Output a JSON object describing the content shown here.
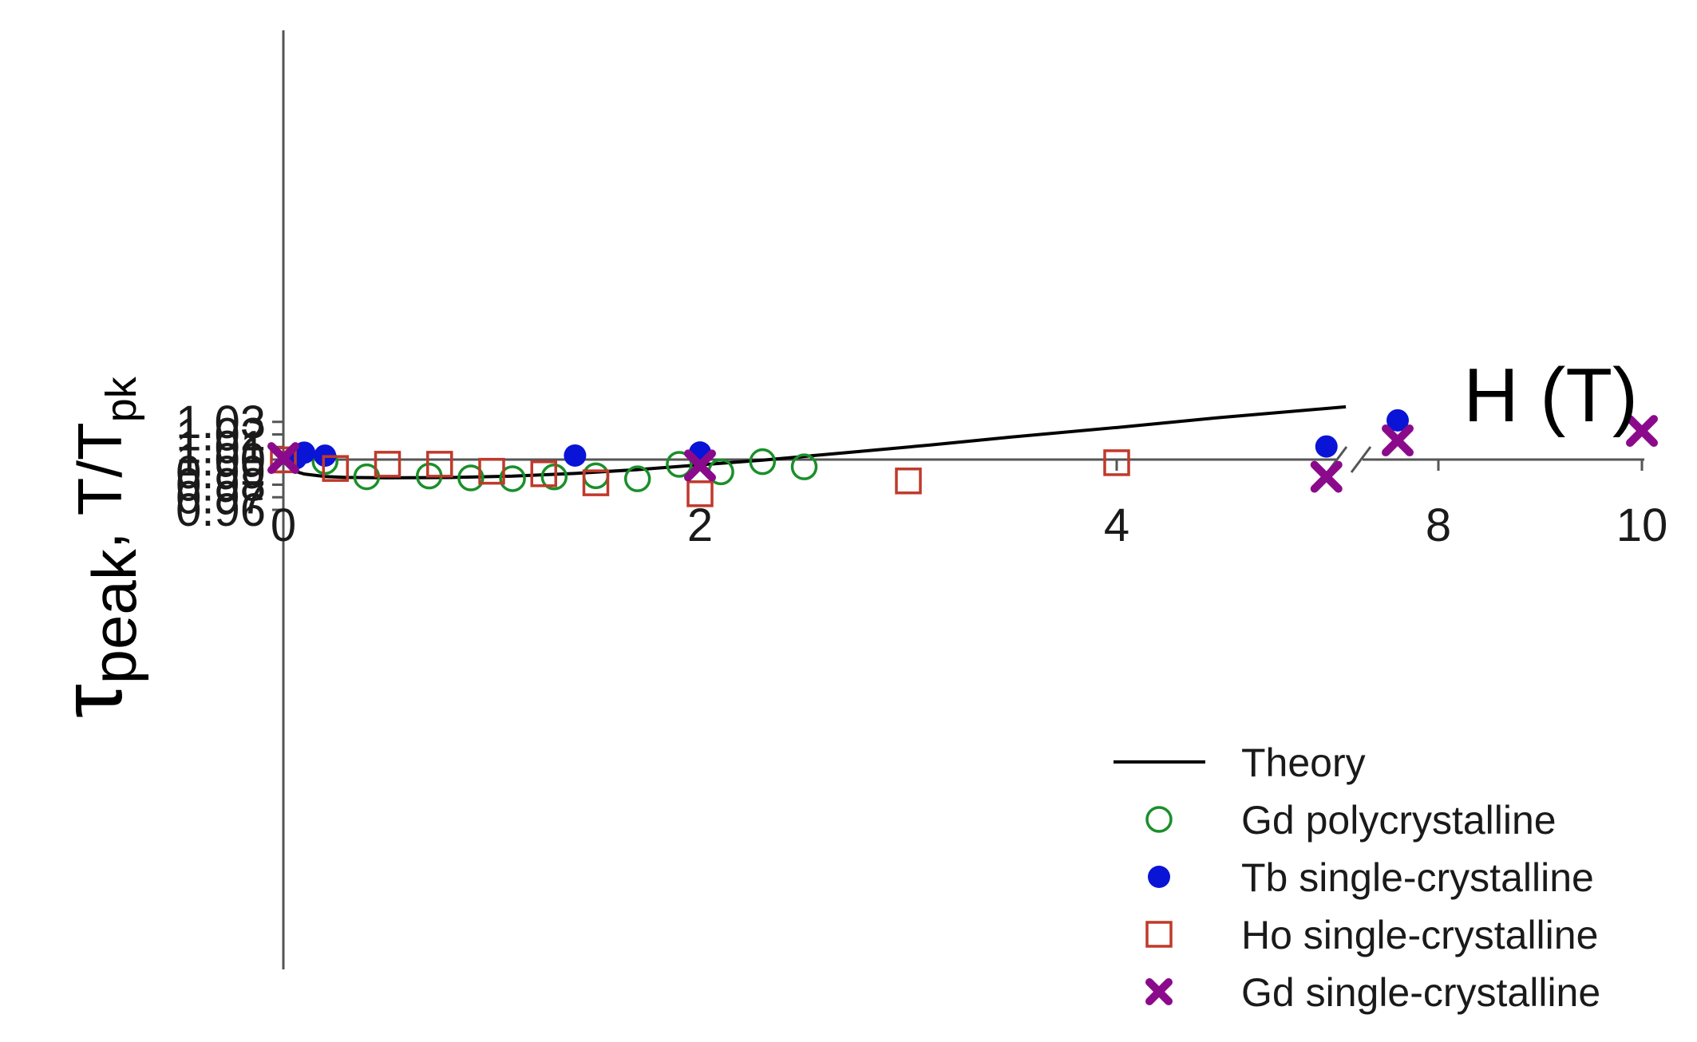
{
  "chart_data": {
    "type": "scatter",
    "xlabel": "H (T)",
    "ylabel": {
      "tau": "τ",
      "sub": "peak",
      "mid": ", T/T",
      "sub2": "pk"
    },
    "ylim": [
      0.96,
      1.03
    ],
    "x_tick_labels": [
      "0",
      "2",
      "4",
      "8",
      "10"
    ],
    "x_tick_values": [
      0,
      2,
      4,
      8,
      10
    ],
    "y_ticks": [
      0.96,
      0.97,
      0.98,
      0.99,
      1.0,
      1.01,
      1.02,
      1.03
    ],
    "y_tick_labels": [
      "0.96",
      "0.97",
      "0.98",
      "0.99",
      "1.00",
      "1.01",
      "1.02",
      "1.03"
    ],
    "x_axis_break": true,
    "grid": false,
    "legend_position": "bottom-right",
    "series": [
      {
        "name": "Theory",
        "kind": "line",
        "color": "#000000",
        "x": [
          0,
          0.05,
          0.1,
          0.2,
          0.3,
          0.5,
          0.8,
          1.1,
          1.4,
          1.7,
          2.0,
          2.3,
          2.7,
          3.1,
          3.5,
          4.0,
          4.5,
          5.1
        ],
        "y": [
          0.9995,
          0.991,
          0.9885,
          0.9865,
          0.9858,
          0.9855,
          0.9857,
          0.9868,
          0.989,
          0.992,
          0.9958,
          0.9995,
          1.0055,
          1.0115,
          1.018,
          1.0255,
          1.0335,
          1.042
        ]
      },
      {
        "name": "Gd polycrystalline",
        "kind": "marker",
        "marker": "open-circle",
        "color": "#1a8f2a",
        "x": [
          0.2,
          0.4,
          0.7,
          0.9,
          1.1,
          1.3,
          1.5,
          1.7,
          1.9,
          2.1,
          2.3,
          2.5
        ],
        "y": [
          0.9985,
          0.9863,
          0.9869,
          0.9854,
          0.9848,
          0.9862,
          0.9871,
          0.9847,
          0.9962,
          0.9902,
          0.9983,
          0.9942
        ]
      },
      {
        "name": "Tb single-crystalline",
        "kind": "marker",
        "marker": "filled-circle",
        "color": "#0a14d6",
        "x": [
          0.06,
          0.1,
          0.2,
          1.4,
          2.0,
          6.9,
          7.6
        ],
        "y": [
          1.001,
          1.0055,
          1.0031,
          1.0032,
          1.0056,
          1.0104,
          1.0312
        ]
      },
      {
        "name": "Ho single-crystalline",
        "kind": "marker",
        "marker": "open-square",
        "color": "#c0392b",
        "x": [
          0.0,
          0.25,
          0.5,
          0.75,
          1.0,
          1.25,
          1.5,
          2.0,
          3.0,
          4.0
        ],
        "y": [
          0.9998,
          0.9929,
          0.9963,
          0.9963,
          0.9907,
          0.9887,
          0.9815,
          0.9728,
          0.983,
          0.9975
        ]
      },
      {
        "name": "Gd single-crystalline",
        "kind": "marker",
        "marker": "x",
        "color": "#8b0a8b",
        "x": [
          0.0,
          2.0,
          6.9,
          7.6,
          10.0
        ],
        "y": [
          1.0012,
          0.9953,
          0.9863,
          1.0152,
          1.0228
        ]
      }
    ]
  }
}
